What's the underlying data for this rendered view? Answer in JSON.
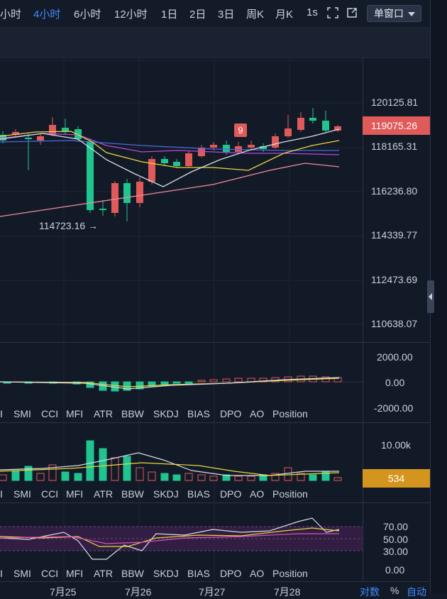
{
  "toolbar": {
    "timeframes": [
      {
        "label": "小时",
        "active": false
      },
      {
        "label": "4小时",
        "active": true
      },
      {
        "label": "6小时",
        "active": false
      },
      {
        "label": "12小时",
        "active": false
      },
      {
        "label": "1日",
        "active": false
      },
      {
        "label": "2日",
        "active": false
      },
      {
        "label": "3日",
        "active": false
      },
      {
        "label": "周K",
        "active": false
      },
      {
        "label": "月K",
        "active": false
      },
      {
        "label": "1s",
        "active": false
      }
    ],
    "window_mode": "单窗口",
    "icons": [
      "fullscreen-icon",
      "popout-icon"
    ]
  },
  "price_axis": [
    "120125.81",
    "118165.31",
    "116236.80",
    "114339.77",
    "112473.69",
    "110638.07"
  ],
  "current_price": {
    "value": "119075.26",
    "color": "#e05a5a"
  },
  "low_marker": "114723.16 →",
  "signal_marker": "9",
  "macd_axis": [
    "2000.00",
    "0.00",
    "-2000.00"
  ],
  "volume_axis": [
    "10.00k"
  ],
  "volume_badge": {
    "value": "534",
    "color": "#d4951e"
  },
  "osc_axis": [
    "70.00",
    "50.00",
    "30.00",
    "0.00"
  ],
  "indicator_tabs": [
    "I",
    "SMI",
    "CCI",
    "MFI",
    "ATR",
    "BBW",
    "SKDJ",
    "BIAS",
    "DPO",
    "AO",
    "Position"
  ],
  "date_labels": [
    "7月25",
    "7月26",
    "7月27",
    "7月28"
  ],
  "bottom_options": [
    {
      "label": "对数",
      "color": "#3e8bff"
    },
    {
      "label": "%",
      "color": "#c9d1de"
    },
    {
      "label": "自动",
      "color": "#3e8bff"
    }
  ],
  "colors": {
    "up": "#e05a5a",
    "down": "#1fc48f",
    "background": "#131a27"
  }
}
